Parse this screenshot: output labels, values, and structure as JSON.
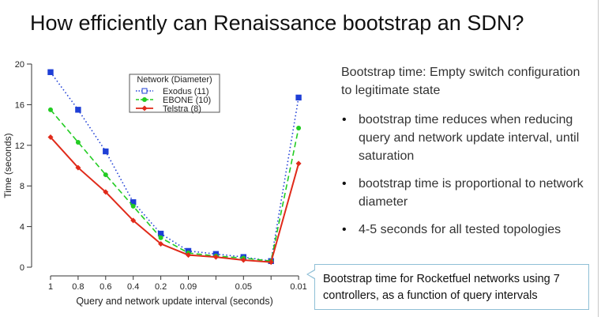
{
  "slide": {
    "title": "How efficiently can Renaissance bootstrap an SDN?"
  },
  "panel": {
    "heading": "Bootstrap time: Empty switch configuration to legitimate state",
    "bullets": [
      "bootstrap time reduces when reducing query and network update interval, until saturation",
      "bootstrap time is proportional to network diameter",
      "4-5 seconds for all tested topologies"
    ]
  },
  "callout": {
    "text": "Bootstrap time for Rocketfuel networks using 7 controllers, as a function of query intervals"
  },
  "chart_data": {
    "type": "line",
    "xlabel": "Query and network update interval (seconds)",
    "ylabel": "Time (seconds)",
    "categories": [
      "1",
      "0.8",
      "0.6",
      "0.4",
      "0.2",
      "0.09",
      "",
      "0.05",
      "",
      "0.01"
    ],
    "ylim": [
      0,
      20
    ],
    "yticks": [
      0,
      4,
      8,
      12,
      16,
      20
    ],
    "grid": false,
    "legend_title": "Network (Diameter)",
    "legend_position": "top-center",
    "series": [
      {
        "name": "Exodus (11)",
        "color": "#1f3fd6",
        "line_style": "dotted",
        "marker": "square",
        "values": [
          19.2,
          15.5,
          11.4,
          6.4,
          3.3,
          1.6,
          1.3,
          1.0,
          0.6,
          16.7
        ]
      },
      {
        "name": "EBONE (10)",
        "color": "#22cc22",
        "line_style": "dashed",
        "marker": "dot",
        "values": [
          15.5,
          12.3,
          9.1,
          6.0,
          2.9,
          1.4,
          1.1,
          0.9,
          0.6,
          13.7
        ]
      },
      {
        "name": "Telstra (8)",
        "color": "#e02a1a",
        "line_style": "solid",
        "marker": "diamond",
        "values": [
          12.8,
          9.8,
          7.4,
          4.6,
          2.3,
          1.2,
          1.0,
          0.7,
          0.5,
          10.2
        ]
      }
    ]
  }
}
